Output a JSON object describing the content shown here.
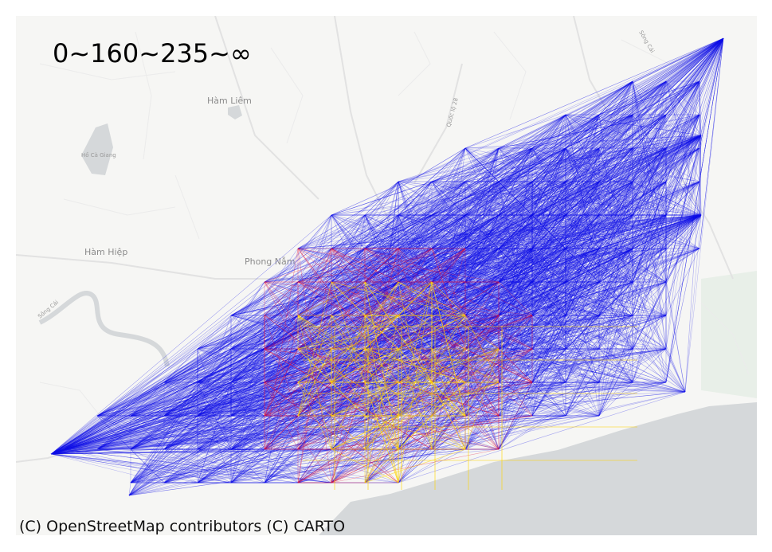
{
  "legend": {
    "text": "0~160~235~∞"
  },
  "attribution": {
    "text": "(C) OpenStreetMap contributors (C) CARTO"
  },
  "basemap": {
    "place_names": [
      "Hàm Liêm",
      "Hàm Hiệp",
      "Phong Nẫm",
      "Hồ Cà Giang",
      "Quốc lộ 28",
      "Sông Cái",
      "Sông Cái"
    ],
    "colors": {
      "land": "#f6f6f4",
      "water": "#d5d8da",
      "roads": "#e6e6e6",
      "park": "#e8efe8"
    }
  },
  "network": {
    "color_bins": [
      {
        "range": "0~160",
        "color": "#ffd400"
      },
      {
        "range": "160~235",
        "color": "#e0123c"
      },
      {
        "range": "235~∞",
        "color": "#1010e8"
      }
    ]
  }
}
